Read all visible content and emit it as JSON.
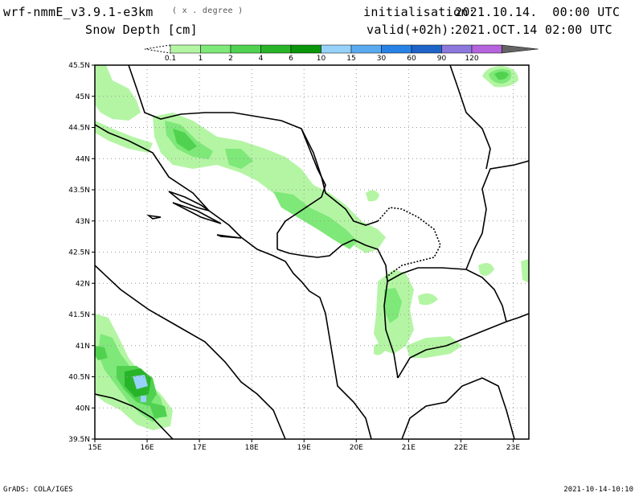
{
  "header": {
    "model": "wrf-nmmE_v3.9.1-e3km",
    "units_note": "( x . degree )",
    "title": "Snow Depth [cm]",
    "init_label": "initialisation:",
    "init_value": "2021.10.14.  00:00 UTC",
    "valid_label": "valid(+02h):",
    "valid_value": "2021.OCT.14 02:00 UTC"
  },
  "legend": {
    "levels": [
      "0.1",
      "1",
      "2",
      "4",
      "6",
      "10",
      "15",
      "30",
      "60",
      "90",
      "120"
    ],
    "colors": [
      "#b4f5a4",
      "#7ee878",
      "#50d250",
      "#28b428",
      "#0a960a",
      "#96d2fa",
      "#5aaaf0",
      "#2882e6",
      "#1e64c8",
      "#8c78dc",
      "#b464dc",
      "#646464"
    ]
  },
  "map": {
    "lat_labels": [
      "45.5N",
      "45N",
      "44.5N",
      "44N",
      "43.5N",
      "43N",
      "42.5N",
      "42N",
      "41.5N",
      "41N",
      "40.5N",
      "40N",
      "39.5N"
    ],
    "lon_labels": [
      "15E",
      "16E",
      "17E",
      "18E",
      "19E",
      "20E",
      "21E",
      "22E",
      "23E"
    ],
    "lat_range": [
      39.5,
      45.5
    ],
    "lon_range": [
      15,
      23.3
    ],
    "grid": true
  },
  "footer": {
    "credit": "GrADS: COLA/IGES",
    "timestamp": "2021-10-14-10:10"
  }
}
